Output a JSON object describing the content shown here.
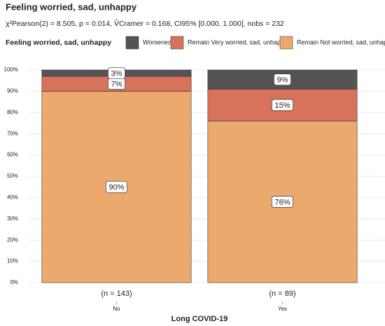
{
  "chart_data": {
    "type": "stacked_bar_100",
    "title": "Feeling worried, sad, unhappy",
    "subtitle": "χ²Pearson(2) = 8.505, p = 0.014, V̂Cramer = 0.168, CI95% [0.000, 1.000], nobs = 232",
    "legend_title": "Feeling worried, sad, unhappy",
    "x_label": "Long COVID-19",
    "categories": [
      "No",
      "Yes"
    ],
    "n_labels": [
      "(n = 143)",
      "(n = 89)"
    ],
    "series": [
      {
        "name": "Worsened",
        "color": "#555353",
        "values": [
          3,
          9
        ],
        "value_labels": [
          "3%",
          "9%"
        ]
      },
      {
        "name": "Remain Very worried, sad, unhappy",
        "color": "#d7735a",
        "values": [
          7,
          15
        ],
        "value_labels": [
          "7%",
          "15%"
        ]
      },
      {
        "name": "Remain Not worried, sad, unhappy",
        "color": "#eca96e",
        "values": [
          90,
          76
        ],
        "value_labels": [
          "90%",
          "76%"
        ]
      }
    ],
    "ylim": [
      0,
      100
    ],
    "yticks": [
      {
        "value": 0,
        "label": "0%"
      },
      {
        "value": 10,
        "label": "10%"
      },
      {
        "value": 20,
        "label": "20%"
      },
      {
        "value": 30,
        "label": "30%"
      },
      {
        "value": 40,
        "label": "40%"
      },
      {
        "value": 50,
        "label": "50%"
      },
      {
        "value": 60,
        "label": "60%"
      },
      {
        "value": 70,
        "label": "70%"
      },
      {
        "value": 80,
        "label": "80%"
      },
      {
        "value": 90,
        "label": "90%"
      },
      {
        "value": 100,
        "label": "100%"
      }
    ],
    "grid": true
  }
}
